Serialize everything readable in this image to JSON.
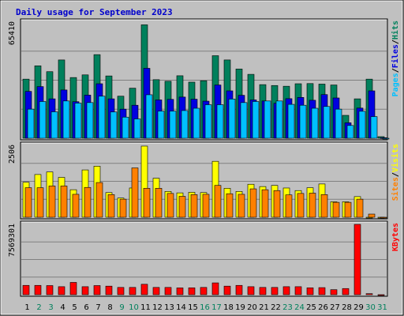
{
  "chart_data": {
    "type": "bar",
    "title": "Daily usage for September 2023",
    "categories": [
      "1",
      "2",
      "3",
      "4",
      "5",
      "6",
      "7",
      "8",
      "9",
      "10",
      "11",
      "12",
      "13",
      "14",
      "15",
      "16",
      "17",
      "18",
      "19",
      "20",
      "21",
      "22",
      "23",
      "24",
      "25",
      "26",
      "27",
      "28",
      "29",
      "30",
      "31"
    ],
    "weekend_days": [
      "2",
      "3",
      "9",
      "10",
      "16",
      "17",
      "23",
      "24",
      "30",
      "31"
    ],
    "colors": {
      "hits": "#00805c",
      "files": "#0000e0",
      "pages": "#00c0ff",
      "visits": "#ffff00",
      "sites": "#ff8000",
      "kbytes": "#ff0000",
      "weekday_label": "#000000",
      "weekend_label": "#00805c",
      "panel_bg": "#c0c0c0",
      "title": "#0000cc"
    },
    "panels": [
      {
        "name": "hits-files-pages",
        "max_label": "65410",
        "ymax": 65410,
        "legend": [
          {
            "text": "Pages",
            "color": "#00c0ff"
          },
          {
            "text": "/",
            "color": "#000000"
          },
          {
            "text": "Files",
            "color": "#0000e0"
          },
          {
            "text": "/",
            "color": "#000000"
          },
          {
            "text": "Hits",
            "color": "#00805c"
          }
        ],
        "series": [
          {
            "name": "Hits",
            "color": "#00805c",
            "values": [
              33300,
              40800,
              37500,
              44100,
              34200,
              35700,
              47100,
              35100,
              23700,
              28200,
              63900,
              33000,
              32100,
              35200,
              31600,
              32400,
              46500,
              44100,
              39000,
              36000,
              30200,
              29700,
              29300,
              30700,
              30800,
              30500,
              30000,
              12900,
              22200,
              33300,
              900
            ]
          },
          {
            "name": "Files",
            "color": "#0000e0",
            "values": [
              26400,
              29100,
              22200,
              27200,
              20600,
              24300,
              30700,
              22200,
              16400,
              18600,
              39400,
              21600,
              21900,
              23200,
              22000,
              20900,
              30000,
              26700,
              24200,
              21600,
              21000,
              19700,
              22300,
              23000,
              21400,
              24600,
              22700,
              8700,
              17000,
              26700,
              300
            ]
          },
          {
            "name": "Pages",
            "color": "#00c0ff",
            "values": [
              16400,
              20700,
              14900,
              21000,
              19800,
              20100,
              23700,
              14800,
              11900,
              10900,
              24500,
              15300,
              15300,
              15600,
              16900,
              18900,
              18900,
              22100,
              20100,
              20700,
              21000,
              21000,
              19100,
              18600,
              16900,
              17900,
              16400,
              7200,
              15200,
              12200,
              0
            ]
          }
        ]
      },
      {
        "name": "visits-sites",
        "max_label": "2506",
        "ymax": 2506,
        "legend": [
          {
            "text": "Sites",
            "color": "#ff8000"
          },
          {
            "text": "/",
            "color": "#000000"
          },
          {
            "text": "Visits",
            "color": "#ffff00"
          }
        ],
        "series": [
          {
            "name": "Visits",
            "color": "#ffff00",
            "values": [
              1220,
              1490,
              1580,
              1390,
              960,
              1650,
              1780,
              860,
              670,
              1020,
              2480,
              1360,
              900,
              850,
              870,
              860,
              1950,
              1010,
              900,
              1150,
              1070,
              1110,
              1020,
              930,
              1030,
              1160,
              540,
              540,
              720,
              0,
              0
            ]
          },
          {
            "name": "Sites",
            "color": "#ff8000",
            "values": [
              1030,
              1030,
              1090,
              1090,
              800,
              1040,
              1210,
              790,
              630,
              1720,
              1010,
              1010,
              830,
              730,
              790,
              800,
              1110,
              820,
              800,
              990,
              960,
              930,
              780,
              830,
              840,
              790,
              520,
              520,
              630,
              110,
              0
            ]
          }
        ]
      },
      {
        "name": "kbytes",
        "max_label": "7569301",
        "ymax": 7569301,
        "legend": [
          {
            "text": "KBytes",
            "color": "#ff0000"
          }
        ],
        "series": [
          {
            "name": "KBytes",
            "color": "#ff0000",
            "values": [
              1000000,
              1000000,
              980000,
              860000,
              1320000,
              860000,
              980000,
              920000,
              780000,
              780000,
              1120000,
              780000,
              780000,
              730000,
              740000,
              780000,
              1270000,
              920000,
              1000000,
              860000,
              780000,
              780000,
              860000,
              860000,
              740000,
              760000,
              540000,
              660000,
              7569301,
              110000,
              0
            ]
          }
        ]
      }
    ]
  }
}
